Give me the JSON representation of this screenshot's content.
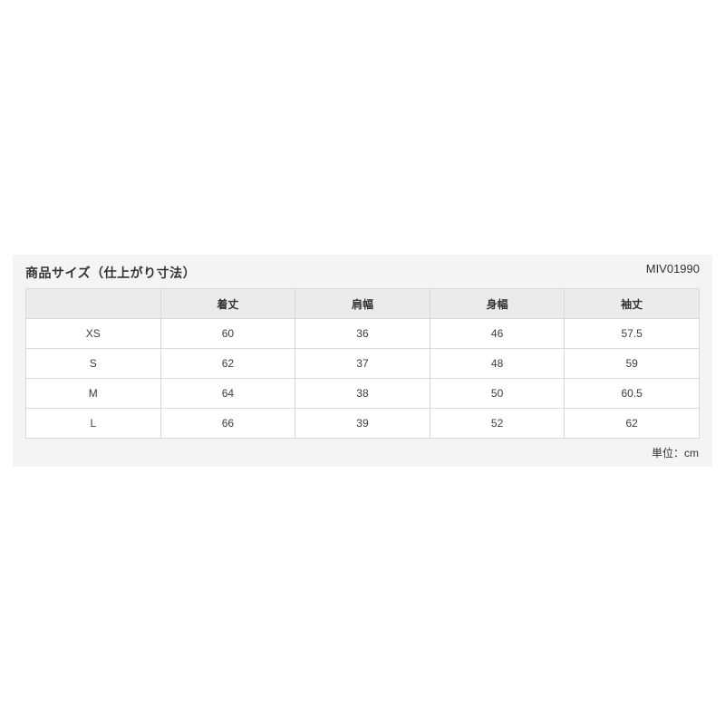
{
  "panel": {
    "title": "商品サイズ（仕上がり寸法）",
    "product_code": "MIV01990",
    "unit_label": "単位：cm",
    "colors": {
      "panel_bg": "#f4f4f4",
      "header_row_bg": "#ebebeb",
      "border": "#d9d9d9",
      "text": "#333333"
    }
  },
  "size_table": {
    "columns": [
      "",
      "着丈",
      "肩幅",
      "身幅",
      "袖丈"
    ],
    "rows": [
      {
        "size": "XS",
        "values": [
          "60",
          "36",
          "46",
          "57.5"
        ]
      },
      {
        "size": "S",
        "values": [
          "62",
          "37",
          "48",
          "59"
        ]
      },
      {
        "size": "M",
        "values": [
          "64",
          "38",
          "50",
          "60.5"
        ]
      },
      {
        "size": "L",
        "values": [
          "66",
          "39",
          "52",
          "62"
        ]
      }
    ]
  }
}
